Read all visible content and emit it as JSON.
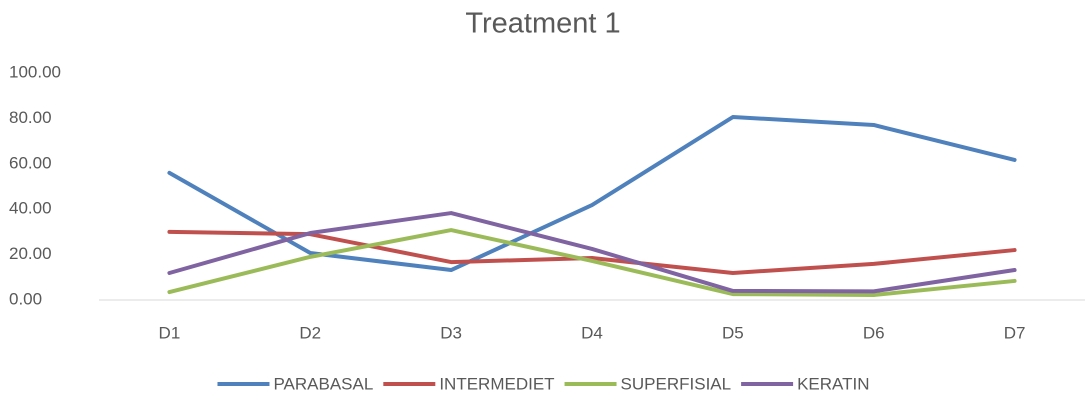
{
  "chart_data": {
    "type": "line",
    "title": "Treatment 1",
    "categories": [
      "D1",
      "D2",
      "D3",
      "D4",
      "D5",
      "D6",
      "D7"
    ],
    "series": [
      {
        "name": "PARABASAL",
        "color": "#4f81bd",
        "values": [
          56,
          20.7,
          13.2,
          41.8,
          80.6,
          77.1,
          61.7
        ]
      },
      {
        "name": "INTERMEDIET",
        "color": "#c0504d",
        "values": [
          30,
          29,
          16.7,
          18.5,
          11.9,
          15.9,
          22
        ]
      },
      {
        "name": "SUPERFISIAL",
        "color": "#9bbb59",
        "values": [
          3.5,
          19,
          30.8,
          17.2,
          2.6,
          2.2,
          8.4
        ]
      },
      {
        "name": "KERATIN",
        "color": "#8064a2",
        "values": [
          11.9,
          29.5,
          38.3,
          22.5,
          4,
          3.8,
          13.2
        ]
      }
    ],
    "ylim": [
      0,
      100
    ],
    "yticks": [
      {
        "value": 0,
        "label": "0.00"
      },
      {
        "value": 20,
        "label": "20.00"
      },
      {
        "value": 40,
        "label": "40.00"
      },
      {
        "value": 60,
        "label": "60.00"
      },
      {
        "value": 80,
        "label": "80.00"
      },
      {
        "value": 100,
        "label": "100.00"
      }
    ],
    "grid": false,
    "legend": "bottom"
  }
}
